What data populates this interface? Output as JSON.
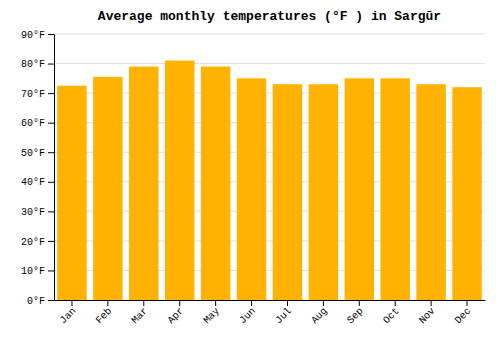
{
  "chart_data": {
    "type": "bar",
    "title": "Average monthly temperatures (°F ) in Sargūr",
    "categories": [
      "Jan",
      "Feb",
      "Mar",
      "Apr",
      "May",
      "Jun",
      "Jul",
      "Aug",
      "Sep",
      "Oct",
      "Nov",
      "Dec"
    ],
    "values": [
      72.5,
      75.5,
      79.0,
      81.0,
      79.0,
      75.0,
      73.0,
      73.0,
      75.0,
      75.0,
      73.0,
      72.0
    ],
    "color": "#FFB300",
    "ylim": [
      0,
      90
    ],
    "yticks": [
      {
        "value": 0,
        "label": "0°F"
      },
      {
        "value": 10,
        "label": "10°F"
      },
      {
        "value": 20,
        "label": "20°F"
      },
      {
        "value": 30,
        "label": "30°F"
      },
      {
        "value": 40,
        "label": "40°F"
      },
      {
        "value": 50,
        "label": "50°F"
      },
      {
        "value": 60,
        "label": "60°F"
      },
      {
        "value": 70,
        "label": "70°F"
      },
      {
        "value": 80,
        "label": "80°F"
      },
      {
        "value": 90,
        "label": "90°F"
      }
    ],
    "grid": true
  }
}
